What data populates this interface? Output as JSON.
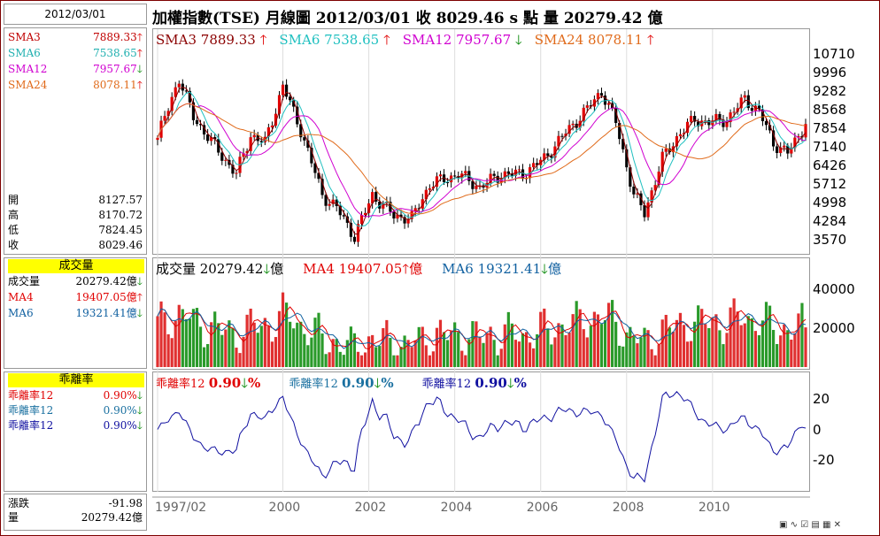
{
  "date_box": "2012/03/01",
  "title": "加權指數(TSE)  月線圖  2012/03/01  收 8029.46 s 點  量 20279.42 億",
  "colors": {
    "sma3": "#8b0000",
    "sma6": "#20c0c0",
    "sma12": "#d000d0",
    "sma24": "#e06a1a",
    "up": "#e00000",
    "down": "#0a8a0a",
    "kline": "#000"
  },
  "left": {
    "sma": [
      {
        "label": "SMA3",
        "value": "7889.33",
        "dir": "up",
        "color": "#c00000"
      },
      {
        "label": "SMA6",
        "value": "7538.65",
        "dir": "up",
        "color": "#20b0b0"
      },
      {
        "label": "SMA12",
        "value": "7957.67",
        "dir": "down",
        "color": "#d000d0"
      },
      {
        "label": "SMA24",
        "value": "8078.11",
        "dir": "up",
        "color": "#e06a1a"
      }
    ],
    "ohlc": [
      {
        "label": "開",
        "value": "8127.57"
      },
      {
        "label": "高",
        "value": "8170.72"
      },
      {
        "label": "低",
        "value": "7824.45"
      },
      {
        "label": "收",
        "value": "8029.46"
      }
    ],
    "vol_header": "成交量",
    "vol": [
      {
        "label": "成交量",
        "value": "20279.42億",
        "dir": "down",
        "color": "#000"
      },
      {
        "label": "MA4",
        "value": "19407.05億",
        "dir": "up",
        "color": "#e00000"
      },
      {
        "label": "MA6",
        "value": "19321.41億",
        "dir": "down",
        "color": "#1060a0"
      }
    ],
    "bias_header": "乖離率",
    "bias": [
      {
        "label": "乖離率12",
        "value": "0.90%",
        "dir": "down",
        "color": "#e00000"
      },
      {
        "label": "乖離率12",
        "value": "0.90%",
        "dir": "down",
        "color": "#1a70a0"
      },
      {
        "label": "乖離率12",
        "value": "0.90%",
        "dir": "down",
        "color": "#1010a0"
      }
    ],
    "change": {
      "label": "漲跌",
      "value": "-91.98"
    },
    "volume": {
      "label": "量",
      "value": "20279.42億"
    }
  },
  "legend_main": [
    {
      "text": "SMA3 7889.33",
      "dir": "up",
      "color": "#8b0000"
    },
    {
      "text": "SMA6 7538.65",
      "dir": "up",
      "color": "#20c0c0"
    },
    {
      "text": "SMA12 7957.67",
      "dir": "down",
      "color": "#d000d0"
    },
    {
      "text": "SMA24 8078.11",
      "dir": "up",
      "color": "#e06a1a"
    }
  ],
  "legend_vol": [
    {
      "text": "成交量 20279.42",
      "dir": "down",
      "suffix": "億",
      "color": "#000"
    },
    {
      "text": "MA4 19407.05",
      "dir": "up",
      "suffix": "億",
      "color": "#e00000"
    },
    {
      "text": "MA6 19321.41",
      "dir": "down",
      "suffix": "億",
      "color": "#1060a0"
    }
  ],
  "legend_bias": [
    {
      "name": "乖離率12",
      "val": "0.90",
      "dir": "down",
      "suffix": "%",
      "color": "#e00000"
    },
    {
      "name": "乖離率12",
      "val": "0.90",
      "dir": "down",
      "suffix": "%",
      "color": "#1a70a0"
    },
    {
      "name": "乖離率12",
      "val": "0.90",
      "dir": "down",
      "suffix": "%",
      "color": "#1010a0"
    }
  ],
  "arrows": {
    "up": "🡑",
    "down": "🡓"
  },
  "chart_data": [
    {
      "type": "candlestick",
      "title": "加權指數(TSE) 月線圖",
      "y_ticks": [
        10710,
        9996,
        9282,
        8568,
        7854,
        7140,
        6426,
        5712,
        4998,
        4284,
        3570
      ],
      "ylim": [
        3100,
        11100
      ],
      "x_ticks": [
        "1997/02",
        "2000",
        "2002",
        "2004",
        "2006",
        "2008",
        "2010"
      ],
      "x_tick_month_index": [
        0,
        35,
        59,
        83,
        107,
        131,
        155
      ],
      "close_path": [
        [
          0,
          7500
        ],
        [
          6,
          9800
        ],
        [
          10,
          8300
        ],
        [
          18,
          6800
        ],
        [
          22,
          6100
        ],
        [
          26,
          7600
        ],
        [
          30,
          7300
        ],
        [
          35,
          9500
        ],
        [
          40,
          7800
        ],
        [
          46,
          5300
        ],
        [
          50,
          4800
        ],
        [
          55,
          3700
        ],
        [
          60,
          5300
        ],
        [
          66,
          4500
        ],
        [
          71,
          4400
        ],
        [
          76,
          5700
        ],
        [
          84,
          6100
        ],
        [
          90,
          5600
        ],
        [
          96,
          6100
        ],
        [
          102,
          6100
        ],
        [
          108,
          6700
        ],
        [
          114,
          7700
        ],
        [
          120,
          8600
        ],
        [
          124,
          9300
        ],
        [
          128,
          8100
        ],
        [
          133,
          5300
        ],
        [
          136,
          4600
        ],
        [
          141,
          6700
        ],
        [
          146,
          7700
        ],
        [
          150,
          8200
        ],
        [
          154,
          8100
        ],
        [
          159,
          8200
        ],
        [
          164,
          9000
        ],
        [
          168,
          8500
        ],
        [
          172,
          7300
        ],
        [
          176,
          6900
        ],
        [
          181,
          8029
        ]
      ],
      "last_ohlc": {
        "open": 8127.57,
        "high": 8170.72,
        "low": 7824.45,
        "close": 8029.46
      },
      "sma": {
        "SMA3": 7889.33,
        "SMA6": 7538.65,
        "SMA12": 7957.67,
        "SMA24": 8078.11
      }
    },
    {
      "type": "bar",
      "title": "成交量",
      "y_ticks": [
        40000,
        20000
      ],
      "ylim": [
        0,
        52000
      ],
      "last": {
        "volume": 20279.42,
        "MA4": 19407.05,
        "MA6": 19321.41
      }
    },
    {
      "type": "line",
      "title": "乖離率12",
      "y_ticks": [
        20,
        0,
        -20
      ],
      "ylim": [
        -40,
        32
      ],
      "last": 0.9
    }
  ]
}
